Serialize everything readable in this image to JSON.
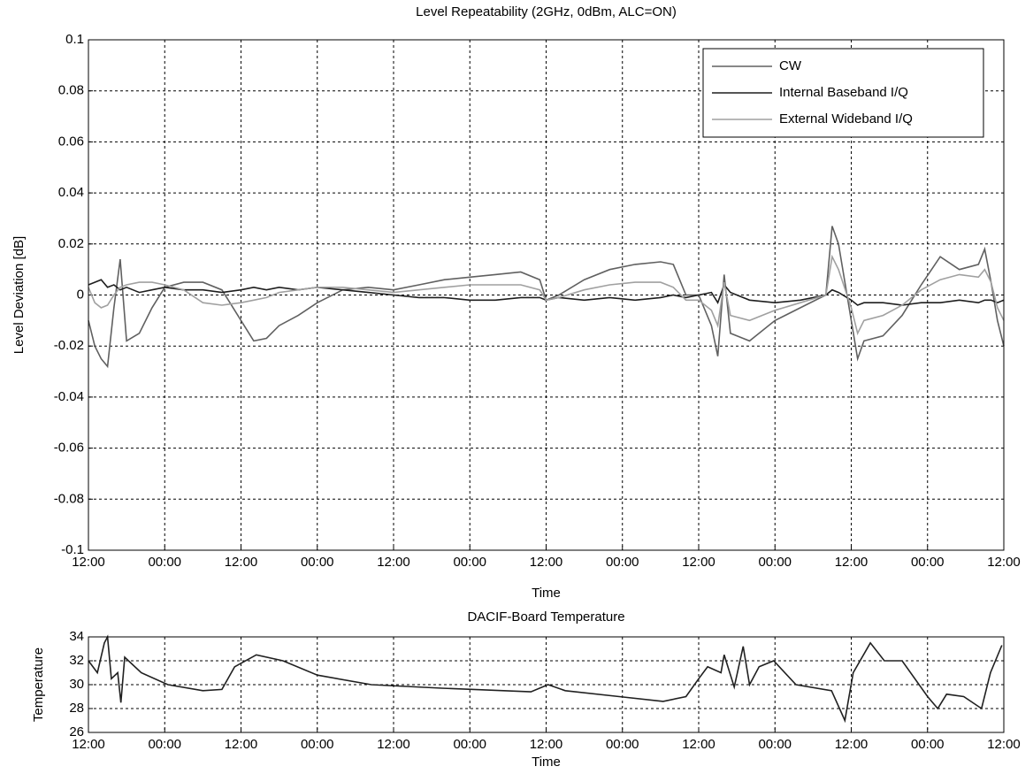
{
  "chart_data": [
    {
      "type": "line",
      "title": "Level Repeatability (2GHz, 0dBm, ALC=ON)",
      "x_label": "Time",
      "y_label": "Level Deviation [dB]",
      "x": [
        0,
        1,
        2,
        3,
        4,
        5,
        6,
        8,
        10,
        12,
        15,
        18,
        21,
        24,
        26,
        28,
        30,
        33,
        36,
        40,
        44,
        48,
        52,
        56,
        60,
        64,
        68,
        71,
        72,
        74,
        78,
        82,
        86,
        90,
        92,
        94,
        96,
        98,
        99,
        100,
        101,
        104,
        108,
        112,
        116,
        117,
        118,
        120,
        121,
        122,
        125,
        128,
        131,
        134,
        137,
        140,
        141,
        142,
        143,
        144
      ],
      "series": [
        {
          "name": "CW",
          "color": "#606060",
          "values": [
            -0.01,
            -0.02,
            -0.025,
            -0.028,
            -0.005,
            0.014,
            -0.018,
            -0.015,
            -0.005,
            0.003,
            0.005,
            0.005,
            0.002,
            -0.01,
            -0.018,
            -0.017,
            -0.012,
            -0.008,
            -0.003,
            0.002,
            0.003,
            0.002,
            0.004,
            0.006,
            0.007,
            0.008,
            0.009,
            0.006,
            -0.002,
            0,
            0.006,
            0.01,
            0.012,
            0.013,
            0.012,
            0,
            0,
            -0.012,
            -0.024,
            0.008,
            -0.015,
            -0.018,
            -0.01,
            -0.005,
            0,
            0.027,
            0.02,
            -0.01,
            -0.025,
            -0.018,
            -0.016,
            -0.008,
            0.004,
            0.015,
            0.01,
            0.012,
            0.018,
            0.005,
            -0.01,
            -0.02
          ]
        },
        {
          "name": "Internal Baseband I/Q",
          "color": "#1e1e1e",
          "values": [
            0.004,
            0.005,
            0.006,
            0.003,
            0.004,
            0.002,
            0.003,
            0.001,
            0.002,
            0.003,
            0.002,
            0.002,
            0.001,
            0.002,
            0.003,
            0.002,
            0.003,
            0.002,
            0.003,
            0.002,
            0.001,
            0,
            -0.001,
            -0.001,
            -0.002,
            -0.002,
            -0.001,
            -0.001,
            -0.002,
            -0.001,
            -0.002,
            -0.001,
            -0.002,
            -0.001,
            0,
            -0.001,
            0,
            0.001,
            -0.003,
            0.004,
            0.001,
            -0.002,
            -0.003,
            -0.002,
            0,
            0.002,
            0.001,
            -0.002,
            -0.004,
            -0.003,
            -0.003,
            -0.004,
            -0.003,
            -0.003,
            -0.002,
            -0.003,
            -0.002,
            -0.002,
            -0.003,
            -0.002
          ]
        },
        {
          "name": "External Wideband I/Q",
          "color": "#a0a0a0",
          "values": [
            0.003,
            -0.003,
            -0.005,
            -0.004,
            0,
            0.003,
            0.004,
            0.005,
            0.005,
            0.004,
            0.002,
            -0.003,
            -0.004,
            -0.003,
            -0.002,
            -0.001,
            0.001,
            0.002,
            0.003,
            0.003,
            0.002,
            0.001,
            0.002,
            0.003,
            0.004,
            0.004,
            0.004,
            0.002,
            -0.002,
            -0.001,
            0.002,
            0.004,
            0.005,
            0.005,
            0.003,
            -0.002,
            -0.002,
            -0.006,
            -0.012,
            0.005,
            -0.008,
            -0.01,
            -0.006,
            -0.003,
            0,
            0.015,
            0.01,
            -0.005,
            -0.015,
            -0.01,
            -0.008,
            -0.004,
            0.002,
            0.006,
            0.008,
            0.007,
            0.01,
            0.005,
            -0.005,
            -0.01
          ]
        }
      ],
      "xlim": [
        0,
        144
      ],
      "xticks": [
        {
          "value": 0,
          "label": "12:00"
        },
        {
          "value": 12,
          "label": "00:00"
        },
        {
          "value": 24,
          "label": "12:00"
        },
        {
          "value": 36,
          "label": "00:00"
        },
        {
          "value": 48,
          "label": "12:00"
        },
        {
          "value": 60,
          "label": "00:00"
        },
        {
          "value": 72,
          "label": "12:00"
        },
        {
          "value": 84,
          "label": "00:00"
        },
        {
          "value": 96,
          "label": "12:00"
        },
        {
          "value": 108,
          "label": "00:00"
        },
        {
          "value": 120,
          "label": "12:00"
        },
        {
          "value": 132,
          "label": "00:00"
        },
        {
          "value": 144,
          "label": "12:00"
        }
      ],
      "ylim": [
        -0.1,
        0.1
      ],
      "yticks": [
        -0.1,
        -0.08,
        -0.06,
        -0.04,
        -0.02,
        0,
        0.02,
        0.04,
        0.06,
        0.08,
        0.1
      ],
      "grid": true,
      "legend": "upper right"
    },
    {
      "type": "line",
      "title": "DACIF-Board Temperature",
      "x_label": "Time",
      "y_label": "Temperature",
      "x": [
        0,
        1.4,
        2.5,
        3,
        3.6,
        4.6,
        5.1,
        5.7,
        8.3,
        12.5,
        18,
        21,
        23,
        26.4,
        30.6,
        36,
        44.5,
        55.6,
        69.6,
        72.3,
        75,
        83.5,
        90.4,
        94,
        96,
        97.4,
        99.5,
        100,
        101.6,
        103,
        104,
        105.5,
        107.8,
        111.3,
        116.9,
        119,
        120.3,
        123,
        125.2,
        128,
        132,
        133.6,
        135,
        137.7,
        140.5,
        141.9,
        143.7
      ],
      "series": [
        {
          "color": "#202020",
          "values": [
            32,
            31,
            33.5,
            34,
            30.5,
            31,
            28.5,
            32.3,
            31,
            30,
            29.5,
            29.6,
            31.5,
            32.5,
            32,
            30.8,
            30,
            29.7,
            29.4,
            30,
            29.5,
            29,
            28.6,
            29,
            30.5,
            31.5,
            31,
            32.5,
            29.8,
            33.2,
            30,
            31.5,
            32,
            30,
            29.5,
            27,
            31,
            33.5,
            32,
            32,
            29,
            28,
            29.2,
            29,
            28,
            31,
            33.3
          ]
        }
      ],
      "xlim": [
        0,
        144
      ],
      "xticks": [
        {
          "value": 0,
          "label": "12:00"
        },
        {
          "value": 12,
          "label": "00:00"
        },
        {
          "value": 24,
          "label": "12:00"
        },
        {
          "value": 36,
          "label": "00:00"
        },
        {
          "value": 48,
          "label": "12:00"
        },
        {
          "value": 60,
          "label": "00:00"
        },
        {
          "value": 72,
          "label": "12:00"
        },
        {
          "value": 84,
          "label": "00:00"
        },
        {
          "value": 96,
          "label": "12:00"
        },
        {
          "value": 108,
          "label": "00:00"
        },
        {
          "value": 120,
          "label": "12:00"
        },
        {
          "value": 132,
          "label": "00:00"
        },
        {
          "value": 144,
          "label": "12:00"
        }
      ],
      "ylim": [
        26,
        34
      ],
      "yticks": [
        26,
        28,
        30,
        32,
        34
      ],
      "grid": true
    }
  ]
}
